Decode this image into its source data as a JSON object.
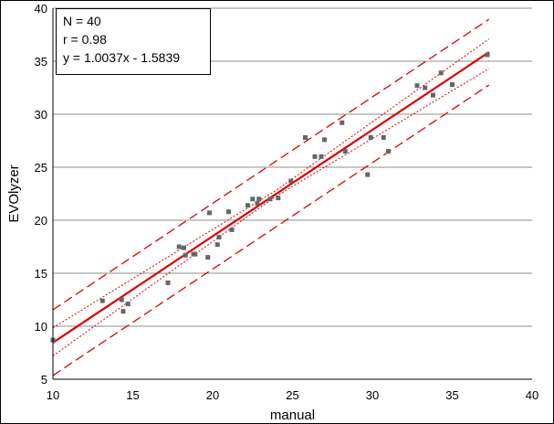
{
  "chart_data": {
    "type": "scatter",
    "xlabel": "manual",
    "ylabel": "EVOlyzer",
    "xlim": [
      10,
      40
    ],
    "ylim": [
      5,
      40
    ],
    "x_ticks": [
      "10",
      "15",
      "20",
      "25",
      "30",
      "35",
      "40"
    ],
    "y_ticks": [
      "5",
      "10",
      "15",
      "20",
      "25",
      "30",
      "35",
      "40"
    ],
    "grid": "horizontal",
    "legend": "none",
    "annotation": {
      "lines": [
        "N = 40",
        "r = 0.98",
        "y = 1.0037x - 1.5839"
      ],
      "placement": "top-left"
    },
    "series": [
      {
        "marker": "square",
        "color": "#666666",
        "points": [
          [
            10.0,
            8.7
          ],
          [
            13.1,
            12.4
          ],
          [
            14.3,
            12.5
          ],
          [
            14.4,
            11.4
          ],
          [
            14.7,
            12.1
          ],
          [
            17.2,
            14.1
          ],
          [
            17.9,
            17.5
          ],
          [
            18.2,
            17.4
          ],
          [
            18.3,
            16.7
          ],
          [
            18.8,
            16.8
          ],
          [
            18.9,
            16.8
          ],
          [
            19.7,
            16.5
          ],
          [
            19.8,
            20.7
          ],
          [
            20.3,
            17.7
          ],
          [
            20.4,
            18.4
          ],
          [
            21.0,
            20.8
          ],
          [
            21.2,
            19.1
          ],
          [
            22.2,
            21.4
          ],
          [
            22.5,
            22.0
          ],
          [
            22.8,
            21.6
          ],
          [
            22.9,
            22.0
          ],
          [
            23.6,
            22.0
          ],
          [
            24.1,
            22.1
          ],
          [
            24.9,
            23.7
          ],
          [
            25.8,
            27.8
          ],
          [
            26.4,
            26.0
          ],
          [
            26.8,
            26.0
          ],
          [
            27.0,
            27.6
          ],
          [
            28.1,
            29.2
          ],
          [
            28.3,
            26.5
          ],
          [
            29.7,
            24.3
          ],
          [
            29.9,
            27.8
          ],
          [
            30.7,
            27.8
          ],
          [
            31.0,
            26.5
          ],
          [
            32.8,
            32.7
          ],
          [
            33.3,
            32.5
          ],
          [
            33.8,
            31.8
          ],
          [
            34.3,
            33.9
          ],
          [
            35.0,
            32.8
          ],
          [
            37.2,
            35.6
          ]
        ]
      }
    ],
    "regression": {
      "slope": 1.0037,
      "intercept": -1.5839,
      "x_range": [
        10,
        37.3
      ],
      "color": "#dd0000"
    },
    "confidence_band": {
      "upper": [
        [
          10,
          9.85
        ],
        [
          23.9,
          22.75
        ],
        [
          37.3,
          37.1
        ]
      ],
      "lower": [
        [
          10,
          7.2
        ],
        [
          23.9,
          22.2
        ],
        [
          37.3,
          34.3
        ]
      ],
      "style": "dotted",
      "color": "#dd0000"
    },
    "prediction_band": {
      "offset": 3.1,
      "style": "dashed",
      "color": "#dd0000"
    }
  }
}
